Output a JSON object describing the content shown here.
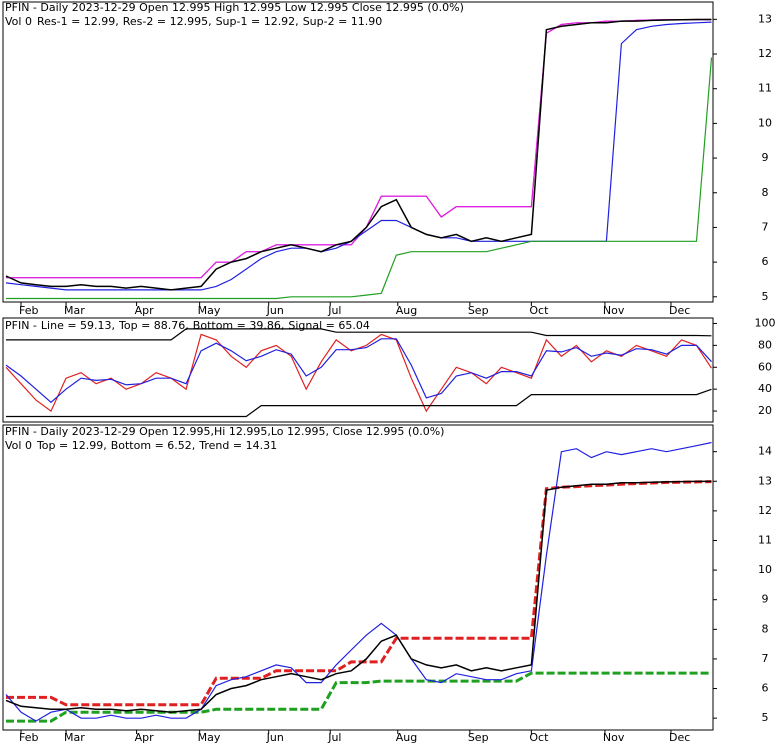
{
  "chart_data": [
    {
      "type": "line",
      "title": "PFIN - Daily 2023-12-29 Open 12.995   High 12.995   Low 12.995   Close 12.995 (0.0%)",
      "subtitle": "Vol 0",
      "x": [
        0,
        1,
        2,
        3,
        4,
        5,
        6,
        7,
        8,
        9,
        10,
        11,
        12,
        13,
        14,
        15,
        16,
        17,
        18,
        19,
        20,
        21,
        22,
        23,
        24,
        25,
        26,
        27,
        28,
        29,
        30,
        31,
        32,
        33,
        34,
        35,
        36,
        37,
        38,
        39,
        40,
        41,
        42,
        43,
        44,
        45,
        46,
        47
      ],
      "values": [
        5.6,
        5.4,
        5.35,
        5.3,
        5.3,
        5.35,
        5.3,
        5.3,
        5.25,
        5.3,
        5.25,
        5.2,
        5.25,
        5.3,
        5.8,
        6.0,
        6.1,
        6.3,
        6.4,
        6.5,
        6.4,
        6.3,
        6.5,
        6.6,
        7.0,
        7.6,
        7.8,
        7.0,
        6.8,
        6.7,
        6.8,
        6.6,
        6.7,
        6.6,
        6.7,
        6.8,
        12.7,
        12.8,
        12.85,
        12.9,
        12.9,
        12.95,
        12.95,
        12.97,
        12.98,
        12.99,
        12.995,
        12.995
      ],
      "color": "#000000",
      "series": [
        {
          "name": "Res-1 = 12.99,",
          "color": "#e020e0",
          "values": [
            5.55,
            5.55,
            5.55,
            5.55,
            5.55,
            5.55,
            5.55,
            5.55,
            5.55,
            5.55,
            5.55,
            5.55,
            5.55,
            5.55,
            6.0,
            6.0,
            6.3,
            6.3,
            6.5,
            6.5,
            6.5,
            6.5,
            6.5,
            6.5,
            7.0,
            7.9,
            7.9,
            7.9,
            7.9,
            7.3,
            7.6,
            7.6,
            7.6,
            7.6,
            7.6,
            7.6,
            12.6,
            12.85,
            12.9,
            12.9,
            12.95,
            12.95,
            12.97,
            12.98,
            12.99,
            12.99,
            12.99,
            12.99
          ]
        },
        {
          "name": "Res-2 = 12.995,",
          "color": "#e020e0",
          "values": [
            5.55,
            5.55,
            5.55,
            5.55,
            5.55,
            5.55,
            5.55,
            5.55,
            5.55,
            5.55,
            5.55,
            5.55,
            5.55,
            5.55,
            6.0,
            6.0,
            6.3,
            6.3,
            6.5,
            6.5,
            6.5,
            6.5,
            6.5,
            6.5,
            7.0,
            7.9,
            7.9,
            7.9,
            7.9,
            7.3,
            7.6,
            7.6,
            7.6,
            7.6,
            7.6,
            7.6,
            12.6,
            12.85,
            12.9,
            12.9,
            12.95,
            12.95,
            12.97,
            12.98,
            12.99,
            12.99,
            12.995,
            12.995
          ]
        },
        {
          "name": "Sup-1 = 12.92,",
          "color": "#2020e0",
          "values": [
            5.4,
            5.35,
            5.3,
            5.25,
            5.2,
            5.2,
            5.2,
            5.2,
            5.2,
            5.2,
            5.2,
            5.2,
            5.2,
            5.2,
            5.3,
            5.5,
            5.8,
            6.1,
            6.3,
            6.4,
            6.4,
            6.3,
            6.4,
            6.6,
            6.9,
            7.2,
            7.2,
            7.0,
            6.8,
            6.7,
            6.7,
            6.6,
            6.6,
            6.6,
            6.6,
            6.6,
            6.6,
            6.6,
            6.6,
            6.6,
            6.6,
            12.3,
            12.7,
            12.8,
            12.85,
            12.88,
            12.9,
            12.92
          ]
        },
        {
          "name": "Sup-2 = 11.90",
          "color": "#20a020",
          "values": [
            4.95,
            4.95,
            4.95,
            4.95,
            4.95,
            4.95,
            4.95,
            4.95,
            4.95,
            4.95,
            4.95,
            4.95,
            4.95,
            4.95,
            4.95,
            4.95,
            4.95,
            4.95,
            4.95,
            5.0,
            5.0,
            5.0,
            5.0,
            5.0,
            5.05,
            5.1,
            6.2,
            6.3,
            6.3,
            6.3,
            6.3,
            6.3,
            6.3,
            6.4,
            6.5,
            6.6,
            6.6,
            6.6,
            6.6,
            6.6,
            6.6,
            6.6,
            6.6,
            6.6,
            6.6,
            6.6,
            6.6,
            11.9
          ]
        }
      ],
      "xlim": [
        -0.2,
        47.1
      ],
      "xticks": [
        {
          "value": 1,
          "label": "Feb"
        },
        {
          "value": 4,
          "label": "Mar"
        },
        {
          "value": 8.7,
          "label": "Apr"
        },
        {
          "value": 12.9,
          "label": "May"
        },
        {
          "value": 17.5,
          "label": "Jun"
        },
        {
          "value": 21.6,
          "label": "Jul"
        },
        {
          "value": 26.1,
          "label": "Aug"
        },
        {
          "value": 30.9,
          "label": "Sep"
        },
        {
          "value": 35,
          "label": "Oct"
        },
        {
          "value": 39.9,
          "label": "Nov"
        },
        {
          "value": 44.3,
          "label": "Dec"
        }
      ],
      "ylim": [
        4.85,
        13.5
      ],
      "yticks": [
        5,
        6,
        7,
        8,
        9,
        10,
        11,
        12,
        13
      ]
    },
    {
      "type": "line",
      "title": "PFIN -",
      "x": [
        0,
        1,
        2,
        3,
        4,
        5,
        6,
        7,
        8,
        9,
        10,
        11,
        12,
        13,
        14,
        15,
        16,
        17,
        18,
        19,
        20,
        21,
        22,
        23,
        24,
        25,
        26,
        27,
        28,
        29,
        30,
        31,
        32,
        33,
        34,
        35,
        36,
        37,
        38,
        39,
        40,
        41,
        42,
        43,
        44,
        45,
        46,
        47
      ],
      "series": [
        {
          "name": "Line = 59.13,",
          "color": "#e02020",
          "values": [
            60,
            45,
            30,
            20,
            50,
            55,
            45,
            50,
            40,
            45,
            55,
            50,
            40,
            90,
            85,
            70,
            60,
            75,
            80,
            70,
            40,
            65,
            85,
            75,
            80,
            90,
            85,
            50,
            20,
            40,
            60,
            55,
            45,
            60,
            55,
            50,
            85,
            70,
            80,
            65,
            75,
            70,
            80,
            75,
            70,
            85,
            80,
            59.13
          ]
        },
        {
          "name": "Top = 88.76,",
          "color": "#000000",
          "values": [
            85,
            85,
            85,
            85,
            85,
            85,
            85,
            85,
            85,
            85,
            85,
            85,
            95,
            95,
            95,
            95,
            95,
            95,
            95,
            95,
            95,
            95,
            92,
            92,
            92,
            92,
            92,
            92,
            92,
            92,
            92,
            92,
            92,
            92,
            92,
            92,
            89,
            89,
            89,
            89,
            89,
            89,
            89,
            89,
            89,
            89,
            89,
            88.76
          ]
        },
        {
          "name": "Bottom = 39.86,",
          "color": "#000000",
          "values": [
            15,
            15,
            15,
            15,
            15,
            15,
            15,
            15,
            15,
            15,
            15,
            15,
            15,
            15,
            15,
            15,
            15,
            25,
            25,
            25,
            25,
            25,
            25,
            25,
            25,
            25,
            25,
            25,
            25,
            25,
            25,
            25,
            25,
            25,
            25,
            35,
            35,
            35,
            35,
            35,
            35,
            35,
            35,
            35,
            35,
            35,
            35,
            39.86
          ]
        },
        {
          "name": "Signal = 65.04",
          "color": "#2020e0",
          "values": [
            62,
            52,
            40,
            28,
            40,
            50,
            48,
            49,
            44,
            45,
            50,
            50,
            45,
            75,
            82,
            75,
            66,
            70,
            76,
            72,
            52,
            60,
            76,
            76,
            78,
            86,
            86,
            62,
            32,
            36,
            52,
            55,
            50,
            56,
            56,
            52,
            75,
            74,
            78,
            70,
            73,
            71,
            77,
            76,
            72,
            80,
            80,
            65.04
          ]
        }
      ],
      "xlim": [
        -0.2,
        47.1
      ],
      "ylim": [
        10,
        105
      ],
      "yticks": [
        20,
        40,
        60,
        80,
        100
      ]
    },
    {
      "type": "line",
      "title": "PFIN - Daily 2023-12-29 Open 12.995,Hi 12.995,Lo 12.995, Close 12.995 (0.0%)",
      "subtitle": "Vol 0",
      "x": [
        0,
        1,
        2,
        3,
        4,
        5,
        6,
        7,
        8,
        9,
        10,
        11,
        12,
        13,
        14,
        15,
        16,
        17,
        18,
        19,
        20,
        21,
        22,
        23,
        24,
        25,
        26,
        27,
        28,
        29,
        30,
        31,
        32,
        33,
        34,
        35,
        36,
        37,
        38,
        39,
        40,
        41,
        42,
        43,
        44,
        45,
        46,
        47
      ],
      "values": [
        5.6,
        5.4,
        5.35,
        5.3,
        5.3,
        5.35,
        5.3,
        5.3,
        5.25,
        5.3,
        5.25,
        5.2,
        5.25,
        5.3,
        5.8,
        6.0,
        6.1,
        6.3,
        6.4,
        6.5,
        6.4,
        6.3,
        6.5,
        6.6,
        7.0,
        7.6,
        7.8,
        7.0,
        6.8,
        6.7,
        6.8,
        6.6,
        6.7,
        6.6,
        6.7,
        6.8,
        12.7,
        12.8,
        12.85,
        12.9,
        12.9,
        12.95,
        12.95,
        12.97,
        12.98,
        12.99,
        12.995,
        12.995
      ],
      "color": "#000000",
      "series": [
        {
          "name": "Top = 12.99,",
          "color": "#e02020",
          "style": "dashed",
          "values": [
            5.7,
            5.7,
            5.7,
            5.7,
            5.45,
            5.45,
            5.45,
            5.45,
            5.45,
            5.45,
            5.45,
            5.45,
            5.45,
            5.45,
            6.35,
            6.35,
            6.35,
            6.35,
            6.6,
            6.6,
            6.6,
            6.6,
            6.6,
            6.9,
            6.9,
            6.9,
            7.7,
            7.7,
            7.7,
            7.7,
            7.7,
            7.7,
            7.7,
            7.7,
            7.7,
            7.7,
            12.75,
            12.8,
            12.82,
            12.85,
            12.87,
            12.9,
            12.92,
            12.94,
            12.96,
            12.97,
            12.98,
            12.99
          ]
        },
        {
          "name": "Bottom = 6.52,",
          "color": "#20a020",
          "style": "dashed",
          "values": [
            4.9,
            4.9,
            4.9,
            4.9,
            5.2,
            5.2,
            5.2,
            5.2,
            5.2,
            5.2,
            5.2,
            5.2,
            5.2,
            5.2,
            5.3,
            5.3,
            5.3,
            5.3,
            5.3,
            5.3,
            5.3,
            5.3,
            6.2,
            6.2,
            6.2,
            6.25,
            6.25,
            6.25,
            6.25,
            6.25,
            6.25,
            6.25,
            6.25,
            6.25,
            6.25,
            6.52,
            6.52,
            6.52,
            6.52,
            6.52,
            6.52,
            6.52,
            6.52,
            6.52,
            6.52,
            6.52,
            6.52,
            6.52
          ]
        },
        {
          "name": "Trend = 14.31",
          "color": "#2020e0",
          "values": [
            5.8,
            5.2,
            4.9,
            5.2,
            5.3,
            5.0,
            5.0,
            5.1,
            5.0,
            5.0,
            5.1,
            5.0,
            5.0,
            5.3,
            6.1,
            6.3,
            6.4,
            6.6,
            6.8,
            6.7,
            6.2,
            6.2,
            6.8,
            7.3,
            7.8,
            8.2,
            7.8,
            7.0,
            6.3,
            6.2,
            6.5,
            6.4,
            6.3,
            6.3,
            6.5,
            6.6,
            10.5,
            14.0,
            14.1,
            13.8,
            14.0,
            13.9,
            14.0,
            14.1,
            14.0,
            14.1,
            14.2,
            14.31
          ]
        }
      ],
      "xlim": [
        -0.2,
        47.1
      ],
      "xticks": [
        {
          "value": 1,
          "label": "Feb"
        },
        {
          "value": 4,
          "label": "Mar"
        },
        {
          "value": 8.7,
          "label": "Apr"
        },
        {
          "value": 12.9,
          "label": "May"
        },
        {
          "value": 17.5,
          "label": "Jun"
        },
        {
          "value": 21.6,
          "label": "Jul"
        },
        {
          "value": 26.1,
          "label": "Aug"
        },
        {
          "value": 30.9,
          "label": "Sep"
        },
        {
          "value": 35,
          "label": "Oct"
        },
        {
          "value": 39.9,
          "label": "Nov"
        },
        {
          "value": 44.3,
          "label": "Dec"
        }
      ],
      "ylim": [
        4.6,
        14.9
      ],
      "yticks": [
        5,
        6,
        7,
        8,
        9,
        10,
        11,
        12,
        13,
        14
      ]
    }
  ]
}
